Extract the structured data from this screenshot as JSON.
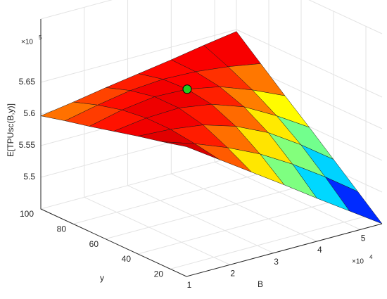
{
  "chart_data": {
    "type": "surface",
    "zlabel": "E[TPUsc(B,y)]",
    "xlabel": "B",
    "ylabel": "y",
    "z_multiplier": {
      "base": "×10",
      "exponent": "5"
    },
    "x_multiplier": {
      "base": "×10",
      "exponent": "4"
    },
    "x": [
      10000,
      17500,
      25000,
      32500,
      40000,
      47500,
      55000
    ],
    "y": [
      10,
      25,
      40,
      55,
      70,
      85,
      100
    ],
    "z": [
      [
        565500,
        562100,
        558700,
        555300,
        551800,
        548400,
        545000
      ],
      [
        564500,
        562800,
        560800,
        558400,
        555400,
        552000,
        548300
      ],
      [
        563600,
        563300,
        562600,
        561000,
        558600,
        555300,
        551600
      ],
      [
        562600,
        563300,
        563500,
        562700,
        560900,
        558100,
        554900
      ],
      [
        561600,
        562800,
        563500,
        563300,
        562300,
        560400,
        558100
      ],
      [
        560700,
        561800,
        562700,
        563100,
        562900,
        562300,
        561400
      ],
      [
        559700,
        560500,
        561400,
        562200,
        563000,
        563900,
        564700
      ]
    ],
    "colormap": "jet",
    "marker": {
      "x": 32500,
      "y": 70,
      "z": 563300,
      "color": "#22cc22"
    },
    "xlim": [
      10000,
      55000
    ],
    "xticks": [
      {
        "value": 10000,
        "label": "1"
      },
      {
        "value": 20000,
        "label": "2"
      },
      {
        "value": 30000,
        "label": "3"
      },
      {
        "value": 40000,
        "label": "4"
      },
      {
        "value": 50000,
        "label": "5"
      }
    ],
    "ylim": [
      10,
      100
    ],
    "yticks": [
      20,
      40,
      60,
      80,
      100
    ],
    "zlim": [
      545000,
      575000
    ],
    "zticks": [
      {
        "value": 550000,
        "label": "5.5"
      },
      {
        "value": 555000,
        "label": "5.55"
      },
      {
        "value": 560000,
        "label": "5.6"
      },
      {
        "value": 565000,
        "label": "5.65"
      }
    ],
    "grid": true
  }
}
